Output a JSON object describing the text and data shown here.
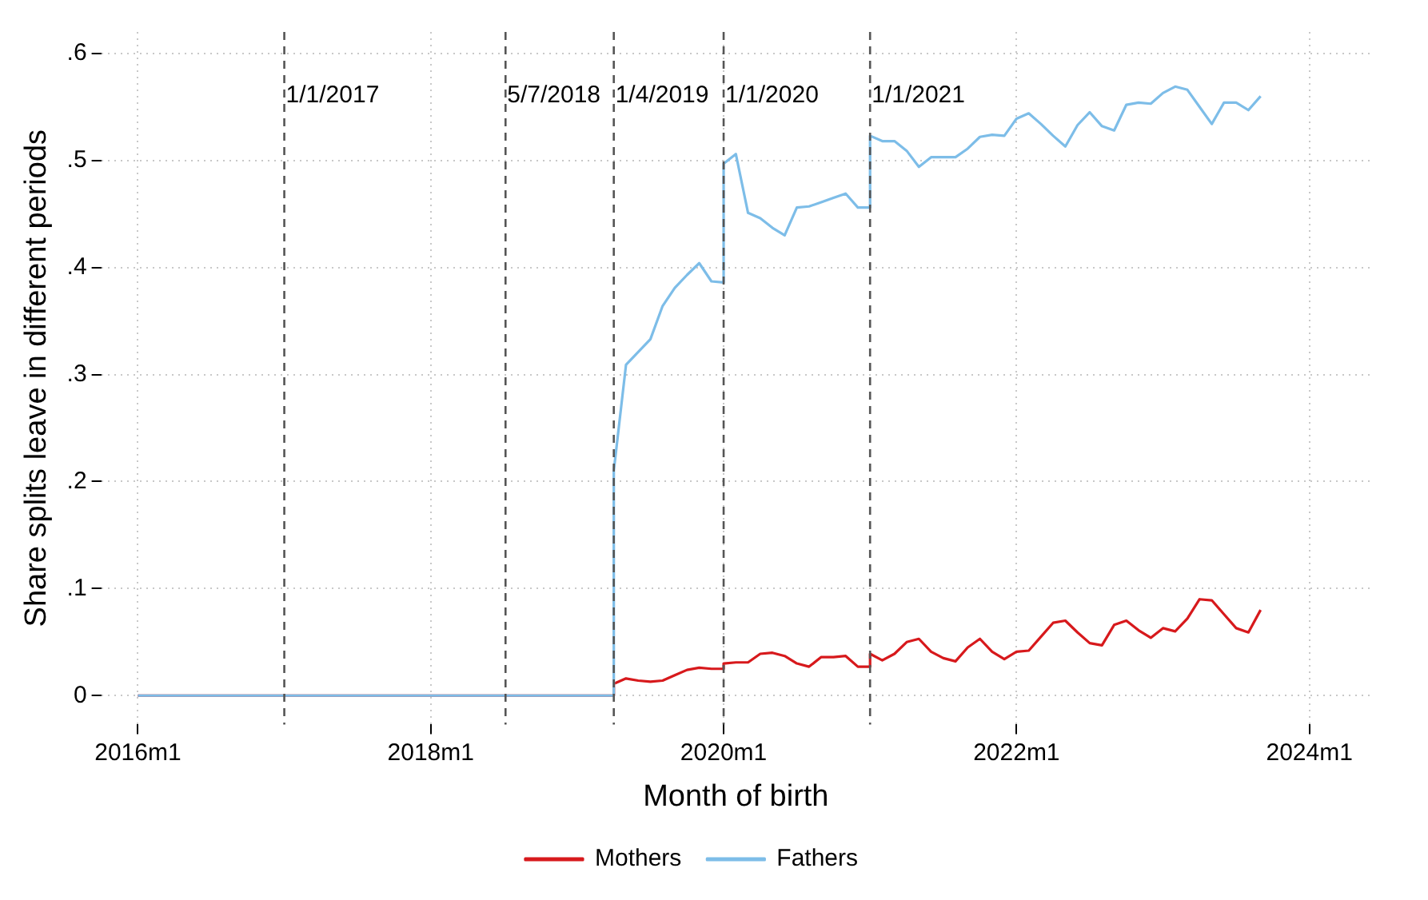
{
  "chart_data": {
    "type": "line",
    "xlabel": "Month of birth",
    "ylabel": "Share splits leave in different periods",
    "xlim": [
      "2015-10",
      "2024-06"
    ],
    "ylim": [
      -0.027,
      0.62
    ],
    "xticks": [
      {
        "value": "2016-01",
        "label": "2016m1"
      },
      {
        "value": "2018-01",
        "label": "2018m1"
      },
      {
        "value": "2020-01",
        "label": "2020m1"
      },
      {
        "value": "2022-01",
        "label": "2022m1"
      },
      {
        "value": "2024-01",
        "label": "2024m1"
      }
    ],
    "yticks": [
      0,
      {
        "value": 0.1,
        "label": ".1"
      },
      {
        "value": 0.2,
        "label": ".2"
      },
      {
        "value": 0.3,
        "label": ".3"
      },
      {
        "value": 0.4,
        "label": ".4"
      },
      {
        "value": 0.5,
        "label": ".5"
      },
      {
        "value": 0.6,
        "label": ".6"
      }
    ],
    "grid": true,
    "legend": "bottom",
    "marker": "none",
    "line_style": "solid",
    "ref_lines": [
      {
        "axis": "x",
        "value": "2017-01-01",
        "label": "1/1/2017",
        "color": "#555555",
        "line_style": "dashed"
      },
      {
        "axis": "x",
        "value": "2018-07-05",
        "label": "5/7/2018",
        "color": "#555555",
        "line_style": "dashed"
      },
      {
        "axis": "x",
        "value": "2019-04-01",
        "label": "1/4/2019",
        "color": "#555555",
        "line_style": "dashed"
      },
      {
        "axis": "x",
        "value": "2020-01-01",
        "label": "1/1/2020",
        "color": "#555555",
        "line_style": "dashed"
      },
      {
        "axis": "x",
        "value": "2021-01-01",
        "label": "1/1/2021",
        "color": "#555555",
        "line_style": "dashed"
      }
    ],
    "series": [
      {
        "name": "Mothers",
        "color": "#d7191c",
        "x": [
          "2016-01",
          "2019-04",
          "2019-04",
          "2019-05",
          "2019-06",
          "2019-07",
          "2019-08",
          "2019-09",
          "2019-10",
          "2019-11",
          "2019-12",
          "2020-01",
          "2020-01",
          "2020-02",
          "2020-03",
          "2020-04",
          "2020-05",
          "2020-06",
          "2020-07",
          "2020-08",
          "2020-09",
          "2020-10",
          "2020-11",
          "2020-12",
          "2021-01",
          "2021-01",
          "2021-02",
          "2021-03",
          "2021-04",
          "2021-05",
          "2021-06",
          "2021-07",
          "2021-08",
          "2021-09",
          "2021-10",
          "2021-11",
          "2021-12",
          "2022-01",
          "2022-02",
          "2022-03",
          "2022-04",
          "2022-05",
          "2022-06",
          "2022-07",
          "2022-08",
          "2022-09",
          "2022-10",
          "2022-11",
          "2022-12",
          "2023-01",
          "2023-02",
          "2023-03",
          "2023-04",
          "2023-05",
          "2023-06",
          "2023-07",
          "2023-08",
          "2023-09"
        ],
        "values": [
          0,
          0,
          0.011,
          0.016,
          0.014,
          0.013,
          0.014,
          0.019,
          0.024,
          0.026,
          0.025,
          0.025,
          0.03,
          0.031,
          0.031,
          0.039,
          0.04,
          0.037,
          0.03,
          0.027,
          0.036,
          0.036,
          0.037,
          0.027,
          0.027,
          0.039,
          0.033,
          0.039,
          0.05,
          0.053,
          0.041,
          0.035,
          0.032,
          0.045,
          0.053,
          0.041,
          0.034,
          0.041,
          0.042,
          0.055,
          0.068,
          0.07,
          0.059,
          0.049,
          0.047,
          0.066,
          0.07,
          0.061,
          0.054,
          0.063,
          0.06,
          0.072,
          0.09,
          0.089,
          0.076,
          0.063,
          0.059,
          0.08
        ]
      },
      {
        "name": "Fathers",
        "color": "#7dbde8",
        "x": [
          "2016-01",
          "2019-04",
          "2019-04",
          "2019-05",
          "2019-06",
          "2019-07",
          "2019-08",
          "2019-09",
          "2019-10",
          "2019-11",
          "2019-12",
          "2020-01",
          "2020-01",
          "2020-02",
          "2020-03",
          "2020-04",
          "2020-05",
          "2020-06",
          "2020-07",
          "2020-08",
          "2020-09",
          "2020-10",
          "2020-11",
          "2020-12",
          "2021-01",
          "2021-01",
          "2021-02",
          "2021-03",
          "2021-04",
          "2021-05",
          "2021-06",
          "2021-07",
          "2021-08",
          "2021-09",
          "2021-10",
          "2021-11",
          "2021-12",
          "2022-01",
          "2022-02",
          "2022-03",
          "2022-04",
          "2022-05",
          "2022-06",
          "2022-07",
          "2022-08",
          "2022-09",
          "2022-10",
          "2022-11",
          "2022-12",
          "2023-01",
          "2023-02",
          "2023-03",
          "2023-04",
          "2023-05",
          "2023-06",
          "2023-07",
          "2023-08",
          "2023-09"
        ],
        "values": [
          0,
          0,
          0.21,
          0.309,
          0.321,
          0.333,
          0.364,
          0.381,
          0.393,
          0.404,
          0.387,
          0.386,
          0.497,
          0.506,
          0.451,
          0.446,
          0.437,
          0.43,
          0.456,
          0.457,
          0.461,
          0.465,
          0.469,
          0.456,
          0.456,
          0.523,
          0.518,
          0.518,
          0.509,
          0.494,
          0.503,
          0.503,
          0.503,
          0.511,
          0.522,
          0.524,
          0.523,
          0.539,
          0.544,
          0.534,
          0.523,
          0.513,
          0.533,
          0.545,
          0.532,
          0.528,
          0.552,
          0.554,
          0.553,
          0.563,
          0.569,
          0.566,
          0.55,
          0.534,
          0.554,
          0.554,
          0.547,
          0.56
        ]
      }
    ]
  }
}
